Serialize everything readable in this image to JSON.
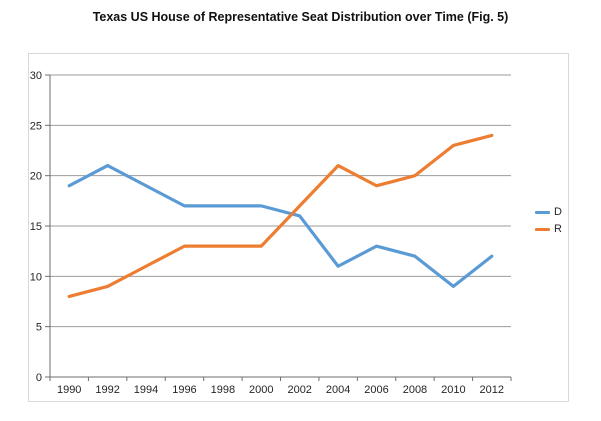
{
  "chart_data": {
    "type": "line",
    "title": "Texas US House of Representative Seat Distribution over Time (Fig. 5)",
    "x": [
      1990,
      1992,
      1994,
      1996,
      1998,
      2000,
      2002,
      2004,
      2006,
      2008,
      2010,
      2012
    ],
    "series": [
      {
        "name": "D",
        "color": "#5B9BD5",
        "values": [
          19,
          21,
          19,
          17,
          17,
          17,
          16,
          11,
          13,
          12,
          9,
          12
        ]
      },
      {
        "name": "R",
        "color": "#ED7D31",
        "values": [
          8,
          9,
          11,
          13,
          13,
          13,
          17,
          21,
          19,
          20,
          23,
          24
        ]
      }
    ],
    "ylim": [
      0,
      30
    ],
    "yticks": [
      0,
      5,
      10,
      15,
      20,
      25,
      30
    ],
    "xlabel": "",
    "ylabel": "",
    "grid": true,
    "markers": false,
    "legend_position": "right"
  },
  "colors": {
    "gridline": "#9b9b9b",
    "axis": "#6e6e6e",
    "tick": "#6e6e6e",
    "frame_border": "#d9d9d9",
    "label_text": "#262626",
    "title_text": "#111111"
  }
}
